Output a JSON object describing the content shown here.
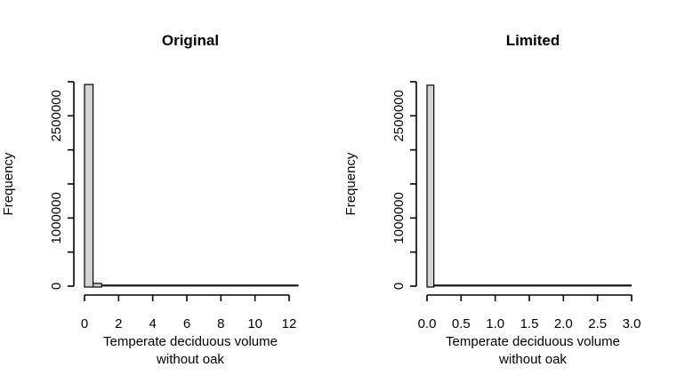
{
  "page": {
    "background": "#ffffff"
  },
  "chart_data": [
    {
      "type": "bar",
      "subtype": "histogram",
      "title": "Original",
      "xlabel_line1": "Temperate deciduous volume",
      "xlabel_line2": "without oak",
      "ylabel": "Frequency",
      "x_ticks": [
        0,
        2,
        4,
        6,
        8,
        10,
        12
      ],
      "x_tick_labels": [
        "0",
        "2",
        "4",
        "6",
        "8",
        "10",
        "12"
      ],
      "xlim": [
        0,
        12.55
      ],
      "y_ticks": [
        0,
        500000,
        1000000,
        1500000,
        2000000,
        2500000,
        3000000
      ],
      "y_tick_labels": [
        "0",
        "",
        "1000000",
        "",
        "",
        "2500000",
        ""
      ],
      "ylim": [
        0,
        3000000
      ],
      "bin_width": 0.5,
      "bars": [
        {
          "x0": 0,
          "x1": 0.5,
          "frequency": 2960000
        },
        {
          "x0": 0.5,
          "x1": 1.0,
          "frequency": 40000
        }
      ],
      "tail": {
        "from": 1.0,
        "to": 12.55,
        "frequency_approx": 5000
      },
      "bar_fill": "#d3d3d3",
      "bar_stroke": "#000000",
      "axis_color": "#000000",
      "text_color": "#000000",
      "grid": "off",
      "legend": "none"
    },
    {
      "type": "bar",
      "subtype": "histogram",
      "title": "Limited",
      "xlabel_line1": "Temperate deciduous volume",
      "xlabel_line2": "without oak",
      "ylabel": "Frequency",
      "x_ticks": [
        0,
        0.5,
        1,
        1.5,
        2,
        2.5,
        3
      ],
      "x_tick_labels": [
        "0.0",
        "0.5",
        "1.0",
        "1.5",
        "2.0",
        "2.5",
        "3.0"
      ],
      "xlim": [
        0,
        3.0
      ],
      "y_ticks": [
        0,
        500000,
        1000000,
        1500000,
        2000000,
        2500000,
        3000000
      ],
      "y_tick_labels": [
        "0",
        "",
        "1000000",
        "",
        "",
        "2500000",
        ""
      ],
      "ylim": [
        0,
        3000000
      ],
      "bin_width": 0.1,
      "bars": [
        {
          "x0": 0,
          "x1": 0.1,
          "frequency": 2950000
        }
      ],
      "tail": {
        "from": 0.1,
        "to": 3.0,
        "frequency_approx": 5000
      },
      "bar_fill": "#d3d3d3",
      "bar_stroke": "#000000",
      "axis_color": "#000000",
      "text_color": "#000000",
      "grid": "off",
      "legend": "none"
    }
  ]
}
